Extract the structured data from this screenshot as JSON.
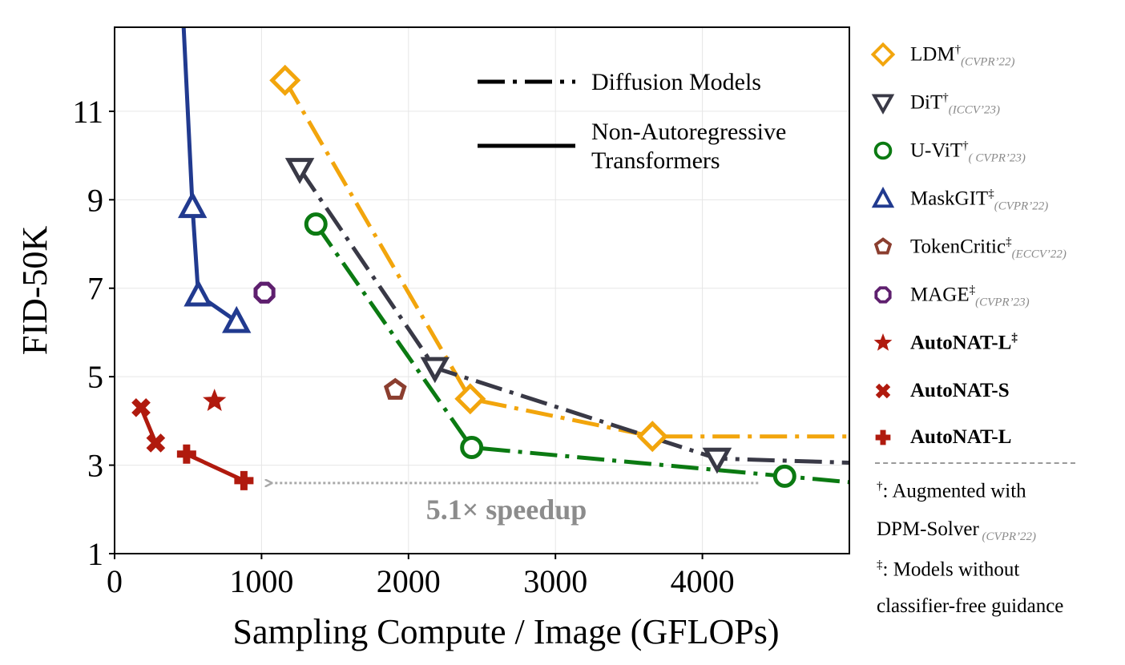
{
  "chart_data": {
    "type": "line",
    "xlabel": "Sampling Compute / Image (GFLOPs)",
    "ylabel": "FID-50K",
    "xlim": [
      0,
      5000
    ],
    "ylim": [
      1,
      12.9
    ],
    "xticks": [
      0,
      1000,
      2000,
      3000,
      4000
    ],
    "yticks": [
      1,
      3,
      5,
      7,
      9,
      11
    ],
    "grid": true,
    "style_legend": [
      {
        "label": "Diffusion Models",
        "style": "dash-dot"
      },
      {
        "label": "Non-Autoregressive Transformers",
        "style": "solid"
      }
    ],
    "annotation": {
      "text": "5.1× speedup",
      "from": [
        4380,
        2.65
      ],
      "to": [
        1040,
        2.65
      ]
    },
    "series": [
      {
        "name": "LDM",
        "sup": "†",
        "venue": "(CVPR’22)",
        "color": "#F2A50C",
        "marker": "diamond",
        "line": "dash-dot",
        "bold": false,
        "x": [
          1160,
          2420,
          3660
        ],
        "y": [
          11.7,
          4.5,
          3.65
        ],
        "line_ext": [
          5050,
          3.65
        ]
      },
      {
        "name": "DiT",
        "sup": "†",
        "venue": "(ICCV’23)",
        "color": "#393946",
        "marker": "triangle-down",
        "line": "dash-dot",
        "bold": false,
        "x": [
          1260,
          2180,
          4100
        ],
        "y": [
          9.7,
          5.2,
          3.15
        ],
        "line_ext": [
          5050,
          3.05
        ]
      },
      {
        "name": "U-ViT",
        "sup": "†",
        "venue": "( CVPR’23)",
        "color": "#0B7A12",
        "marker": "circle",
        "line": "dash-dot",
        "bold": false,
        "x": [
          1370,
          2430,
          4560
        ],
        "y": [
          8.45,
          3.4,
          2.75
        ],
        "line_ext": [
          5050,
          2.6
        ]
      },
      {
        "name": "MaskGIT",
        "sup": "‡",
        "venue": "(CVPR’22)",
        "color": "#213A8F",
        "marker": "triangle-up",
        "line": "solid",
        "bold": false,
        "x": [
          530,
          570,
          830
        ],
        "y": [
          8.85,
          6.85,
          6.25
        ],
        "line_start": [
          470,
          12.9
        ]
      },
      {
        "name": "TokenCritic",
        "sup": "‡",
        "venue": "(ECCV’22)",
        "color": "#8B3E2F",
        "marker": "pentagon",
        "line": "none",
        "bold": false,
        "x": [
          1910
        ],
        "y": [
          4.7
        ]
      },
      {
        "name": "MAGE",
        "sup": "‡",
        "venue": "(CVPR’23)",
        "color": "#5E1F6E",
        "marker": "octagon",
        "line": "none",
        "bold": false,
        "x": [
          1020
        ],
        "y": [
          6.9
        ]
      },
      {
        "name": "AutoNAT-L",
        "sup": "‡",
        "venue": "",
        "color": "#B01A0E",
        "marker": "star",
        "line": "none",
        "bold": true,
        "x": [
          680
        ],
        "y": [
          4.45
        ]
      },
      {
        "name": "AutoNAT-S",
        "sup": "",
        "venue": "",
        "color": "#B01A0E",
        "marker": "x",
        "line": "solid",
        "bold": true,
        "x": [
          180,
          280
        ],
        "y": [
          4.3,
          3.5
        ]
      },
      {
        "name": "AutoNAT-L",
        "sup": "",
        "venue": "",
        "color": "#B01A0E",
        "marker": "plus",
        "line": "solid",
        "bold": true,
        "x": [
          490,
          880
        ],
        "y": [
          3.25,
          2.65
        ]
      }
    ],
    "notes": [
      {
        "mark": "†",
        "text": ": Augmented with"
      },
      {
        "mark": "",
        "text": "DPM-Solver",
        "venue": "(CVPR’22)"
      },
      {
        "mark": "‡",
        "text": ": Models without"
      },
      {
        "mark": "",
        "text": "classifier-free guidance"
      }
    ]
  }
}
